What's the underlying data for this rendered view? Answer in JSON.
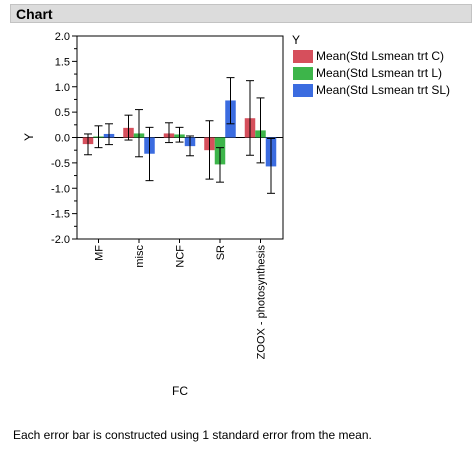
{
  "window": {
    "title": "Chart"
  },
  "footnote": "Each error bar is constructed using 1 standard error from the mean.",
  "chart_data": {
    "type": "bar",
    "title": "",
    "xlabel": "FC",
    "ylabel": "Y",
    "ylim": [
      -2.0,
      2.0
    ],
    "yticks": [
      "2.0",
      "1.5",
      "1.0",
      "0.5",
      "0.0",
      "-0.5",
      "-1.0",
      "-1.5",
      "-2.0"
    ],
    "categories": [
      "MF",
      "misc",
      "NCF",
      "SR",
      "ZOOX - photosynthesis"
    ],
    "legend": {
      "title": "Y",
      "position": "right"
    },
    "error_bars": "1 standard error",
    "series": [
      {
        "name": "Mean(Std Lsmean trt C)",
        "color": "#d64f5c",
        "values": [
          -0.13,
          0.19,
          0.08,
          -0.25,
          0.38
        ],
        "err_low": [
          -0.34,
          -0.05,
          -0.1,
          -0.82,
          -0.35
        ],
        "err_high": [
          0.07,
          0.44,
          0.29,
          0.33,
          1.12
        ]
      },
      {
        "name": "Mean(Std Lsmean trt L)",
        "color": "#3db54a",
        "values": [
          0.02,
          0.08,
          0.06,
          -0.53,
          0.14
        ],
        "err_low": [
          -0.2,
          -0.38,
          -0.09,
          -0.88,
          -0.5
        ],
        "err_high": [
          0.23,
          0.55,
          0.2,
          -0.2,
          0.78
        ]
      },
      {
        "name": "Mean(Std Lsmean trt SL)",
        "color": "#3b6ce0",
        "values": [
          0.07,
          -0.32,
          -0.17,
          0.73,
          -0.57
        ],
        "err_low": [
          -0.14,
          -0.85,
          -0.36,
          0.27,
          -1.1
        ],
        "err_high": [
          0.27,
          0.2,
          0.03,
          1.18,
          -0.02
        ]
      }
    ]
  }
}
